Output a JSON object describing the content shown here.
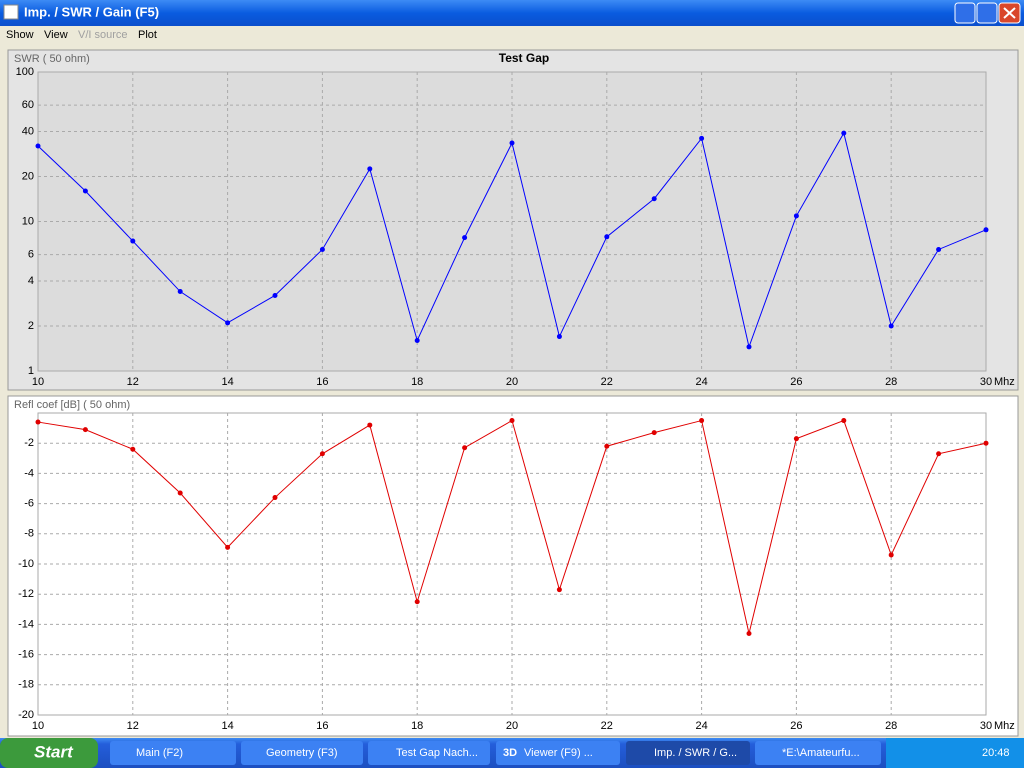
{
  "window": {
    "title": "Imp. / SWR / Gain   (F5)"
  },
  "menu": [
    "Show",
    "View",
    "V/I source",
    "Plot"
  ],
  "chart_data": [
    {
      "type": "line",
      "title": "Test Gap",
      "y_label": "SWR ( 50 ohm)",
      "x_unit": "Mhz",
      "x": [
        10,
        11,
        12,
        13,
        14,
        15,
        16,
        17,
        18,
        19,
        20,
        21,
        22,
        23,
        24,
        25,
        26,
        27,
        28,
        29,
        30
      ],
      "series": [
        {
          "color": "#0000ff",
          "values": [
            32,
            16,
            7.4,
            3.4,
            2.1,
            3.2,
            6.5,
            22.5,
            1.6,
            7.8,
            33.5,
            1.7,
            7.9,
            14.2,
            36,
            1.45,
            10.9,
            39,
            2.0,
            6.5,
            8.8
          ]
        }
      ],
      "xlim": [
        10,
        30
      ],
      "xticks": [
        10,
        12,
        14,
        16,
        18,
        20,
        22,
        24,
        26,
        28,
        30
      ],
      "ylim": [
        1,
        100
      ],
      "yticks": [
        1,
        2,
        4,
        6,
        10,
        20,
        40,
        60,
        100
      ],
      "log_y": true,
      "grid": true
    },
    {
      "type": "line",
      "y_label": "Refl coef [dB] ( 50 ohm)",
      "x_unit": "Mhz",
      "x": [
        10,
        11,
        12,
        13,
        14,
        15,
        16,
        17,
        18,
        19,
        20,
        21,
        22,
        23,
        24,
        25,
        26,
        27,
        28,
        29,
        30
      ],
      "series": [
        {
          "color": "#e00000",
          "values": [
            -0.6,
            -1.1,
            -2.4,
            -5.3,
            -8.9,
            -5.6,
            -2.7,
            -0.8,
            -12.5,
            -2.3,
            -0.5,
            -11.7,
            -2.2,
            -1.3,
            -0.5,
            -14.6,
            -1.7,
            -0.5,
            -9.4,
            -2.7,
            -2.0
          ]
        }
      ],
      "xlim": [
        10,
        30
      ],
      "xticks": [
        10,
        12,
        14,
        16,
        18,
        20,
        22,
        24,
        26,
        28,
        30
      ],
      "ylim": [
        -20,
        0
      ],
      "yticks": [
        -2,
        -4,
        -6,
        -8,
        -10,
        -12,
        -14,
        -16,
        -18,
        -20
      ],
      "log_y": false,
      "grid": true
    }
  ],
  "taskbar": {
    "start": "Start",
    "items": [
      "Main   (F2)",
      "Geometry   (F3)",
      "Test Gap Nach...",
      "Viewer (F9)   ...",
      "Imp. / SWR / G...",
      "*E:\\Amateurfu..."
    ],
    "viewer_icon": "3D",
    "clock": "20:48"
  }
}
